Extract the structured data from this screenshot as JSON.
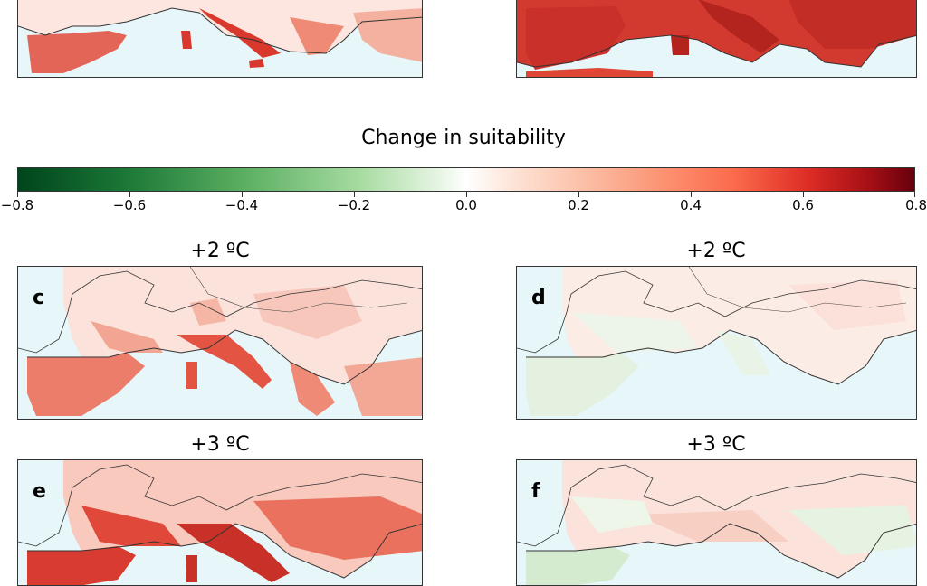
{
  "colorbar": {
    "title": "Change in suitability",
    "ticks": [
      "−0.8",
      "−0.6",
      "−0.4",
      "−0.2",
      "0.0",
      "0.2",
      "0.4",
      "0.6",
      "0.8"
    ],
    "min": -0.8,
    "max": 0.8,
    "colors": {
      "negative": "#00441b",
      "zero": "#ffffff",
      "positive": "#67000d"
    }
  },
  "panels": [
    {
      "id": "a-top",
      "letter": "",
      "title": ""
    },
    {
      "id": "b-top",
      "letter": "",
      "title": ""
    },
    {
      "id": "c",
      "letter": "c",
      "title": "+2 ºC"
    },
    {
      "id": "d",
      "letter": "d",
      "title": "+2 ºC"
    },
    {
      "id": "e",
      "letter": "e",
      "title": "+3 ºC"
    },
    {
      "id": "f",
      "letter": "f",
      "title": "+3 ºC"
    }
  ],
  "colors": {
    "sea": "#e6f6f9",
    "border": "#333333"
  }
}
